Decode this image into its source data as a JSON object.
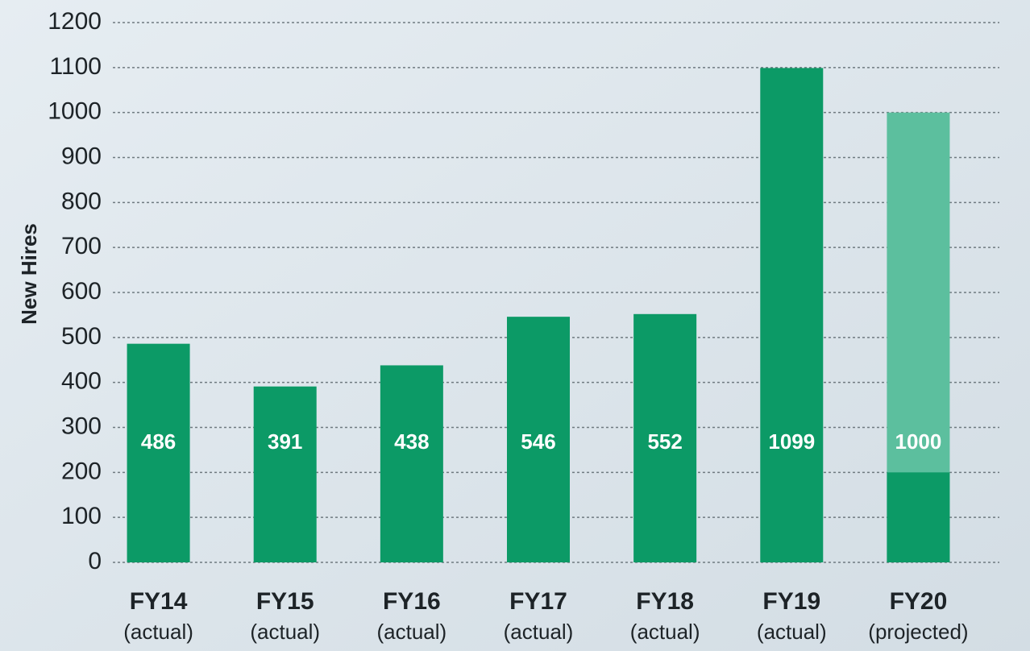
{
  "chart_data": {
    "type": "bar",
    "y_label": "New Hires",
    "categories": [
      "FY14",
      "FY15",
      "FY16",
      "FY17",
      "FY18",
      "FY19",
      "FY20"
    ],
    "category_sublabels": [
      "(actual)",
      "(actual)",
      "(actual)",
      "(actual)",
      "(actual)",
      "(actual)",
      "(projected)"
    ],
    "values": [
      486,
      391,
      438,
      546,
      552,
      1099,
      1000
    ],
    "bar_colors": [
      "#0c9a66",
      "#0c9a66",
      "#0c9a66",
      "#0c9a66",
      "#0c9a66",
      "#0c9a66",
      "#5cbf9e"
    ],
    "inner_values": [
      null,
      null,
      null,
      null,
      null,
      null,
      200
    ],
    "inner_color": "#0c9a66",
    "ylim": [
      0,
      1200
    ],
    "yticks": [
      0,
      100,
      200,
      300,
      400,
      500,
      600,
      700,
      800,
      900,
      1000,
      1100,
      1200
    ],
    "grid": true
  }
}
